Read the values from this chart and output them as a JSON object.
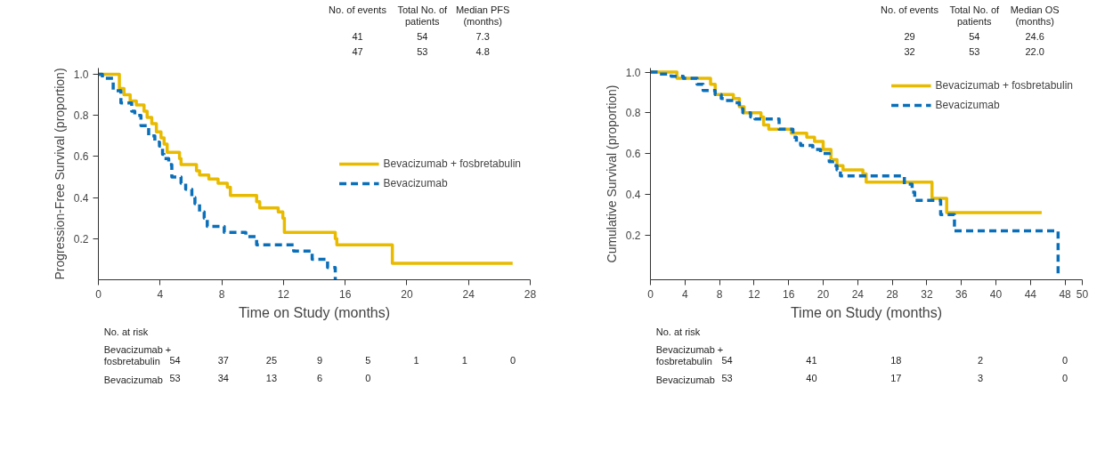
{
  "chart_data": [
    {
      "type": "step",
      "xlabel": "Time on Study (months)",
      "ylabel": "Progression-Free Survival (proportion)",
      "xlim": [
        0,
        28
      ],
      "ylim": [
        0,
        1.03
      ],
      "xticks": [
        0,
        4,
        8,
        12,
        16,
        20,
        24,
        28
      ],
      "yticks": [
        0.2,
        0.4,
        0.6,
        0.8,
        {
          "value": 1,
          "label": "1.0"
        }
      ],
      "legend": "right",
      "series": [
        {
          "name": "Bevacizumab + fosbretabulin",
          "color": "#e8bb00",
          "line_style": "solid",
          "x": [
            0,
            1.36,
            1.66,
            2.06,
            2.46,
            2.96,
            3.16,
            3.46,
            3.76,
            4.06,
            4.26,
            4.46,
            5.26,
            5.36,
            6.36,
            6.56,
            7.16,
            7.76,
            8.36,
            8.56,
            10.26,
            10.46,
            11.66,
            11.96,
            12.06,
            15.36,
            15.46,
            19.06,
            26.86
          ],
          "values": [
            1.0,
            0.93,
            0.9,
            0.87,
            0.85,
            0.82,
            0.79,
            0.76,
            0.72,
            0.69,
            0.66,
            0.62,
            0.59,
            0.56,
            0.53,
            0.51,
            0.49,
            0.47,
            0.45,
            0.41,
            0.38,
            0.35,
            0.33,
            0.3,
            0.23,
            0.2,
            0.17,
            0.08,
            0.08
          ]
        },
        {
          "name": "Bevacizumab",
          "color": "#0a6fba",
          "line_style": "dashed",
          "x": [
            0,
            0.26,
            0.96,
            1.46,
            2.16,
            2.36,
            2.76,
            3.26,
            3.66,
            3.96,
            4.16,
            4.26,
            4.56,
            4.76,
            5.36,
            5.66,
            6.06,
            6.26,
            6.56,
            6.86,
            7.06,
            8.16,
            9.56,
            10.26,
            12.66,
            13.86,
            14.86,
            15.36
          ],
          "values": [
            1.0,
            0.98,
            0.92,
            0.86,
            0.82,
            0.8,
            0.75,
            0.7,
            0.67,
            0.65,
            0.61,
            0.59,
            0.56,
            0.5,
            0.47,
            0.44,
            0.4,
            0.37,
            0.33,
            0.3,
            0.26,
            0.23,
            0.21,
            0.17,
            0.14,
            0.1,
            0.06,
            0.0
          ]
        }
      ],
      "annotations": [
        "No. of events",
        "Total No. of\npatients",
        "Median PFS\n(months)",
        "41",
        "54",
        "7.3",
        "47",
        "53",
        "4.8",
        "No. at risk",
        "Bevacizumab +\nfosbretabulin",
        "54",
        "37",
        "25",
        "9",
        "5",
        "1",
        "1",
        "0",
        "Bevacizumab",
        "53",
        "34",
        "13",
        "6",
        "0"
      ]
    },
    {
      "type": "step",
      "xlabel": "Time on Study (months)",
      "ylabel": "Cumulative Survival (proportion)",
      "xlim": [
        0,
        50
      ],
      "ylim": [
        -0.02,
        1.02
      ],
      "xticks": [
        0,
        4,
        8,
        12,
        16,
        20,
        24,
        28,
        32,
        36,
        40,
        44,
        48,
        50
      ],
      "yticks": [
        0.2,
        0.4,
        0.6,
        0.8,
        {
          "value": 1,
          "label": "1.0"
        }
      ],
      "legend": "top right",
      "series": [
        {
          "name": "Bevacizumab + fosbretabulin",
          "color": "#e8bb00",
          "line_style": "solid",
          "x": [
            0,
            3.07,
            6.96,
            7.5,
            9.6,
            10.3,
            10.85,
            12.8,
            13.1,
            13.7,
            16.3,
            18.1,
            19.0,
            20.0,
            20.9,
            21.6,
            22.3,
            24.6,
            24.98,
            32.6,
            34.3,
            45.3
          ],
          "values": [
            1.0,
            0.97,
            0.94,
            0.89,
            0.87,
            0.83,
            0.8,
            0.78,
            0.74,
            0.72,
            0.7,
            0.68,
            0.66,
            0.62,
            0.57,
            0.54,
            0.52,
            0.5,
            0.46,
            0.38,
            0.31,
            0.31
          ]
        },
        {
          "name": "Bevacizumab",
          "color": "#0a6fba",
          "line_style": "dashed",
          "x": [
            0,
            1.1,
            2.4,
            3.8,
            5.4,
            6.1,
            7.5,
            8.2,
            8.6,
            9.8,
            10.3,
            10.7,
            11.6,
            12.1,
            14.9,
            16.5,
            16.9,
            17.4,
            18.8,
            19.7,
            20.7,
            21.1,
            21.6,
            22.0,
            29.4,
            30.3,
            30.6,
            33.6,
            35.2,
            47.2
          ],
          "values": [
            1.0,
            0.99,
            0.98,
            0.97,
            0.94,
            0.91,
            0.89,
            0.87,
            0.86,
            0.85,
            0.82,
            0.8,
            0.78,
            0.77,
            0.72,
            0.68,
            0.65,
            0.64,
            0.62,
            0.6,
            0.56,
            0.54,
            0.52,
            0.49,
            0.45,
            0.41,
            0.37,
            0.3,
            0.22,
            0.0
          ]
        }
      ],
      "annotations": [
        "No. of events",
        "Total No. of\npatients",
        "Median OS\n(months)",
        "29",
        "54",
        "24.6",
        "32",
        "53",
        "22.0",
        "No. at risk",
        "Bevacizumab +\nfosbretabulin",
        "54",
        "41",
        "18",
        "2",
        "0",
        "Bevacizumab",
        "53",
        "40",
        "17",
        "3",
        "0"
      ]
    }
  ]
}
